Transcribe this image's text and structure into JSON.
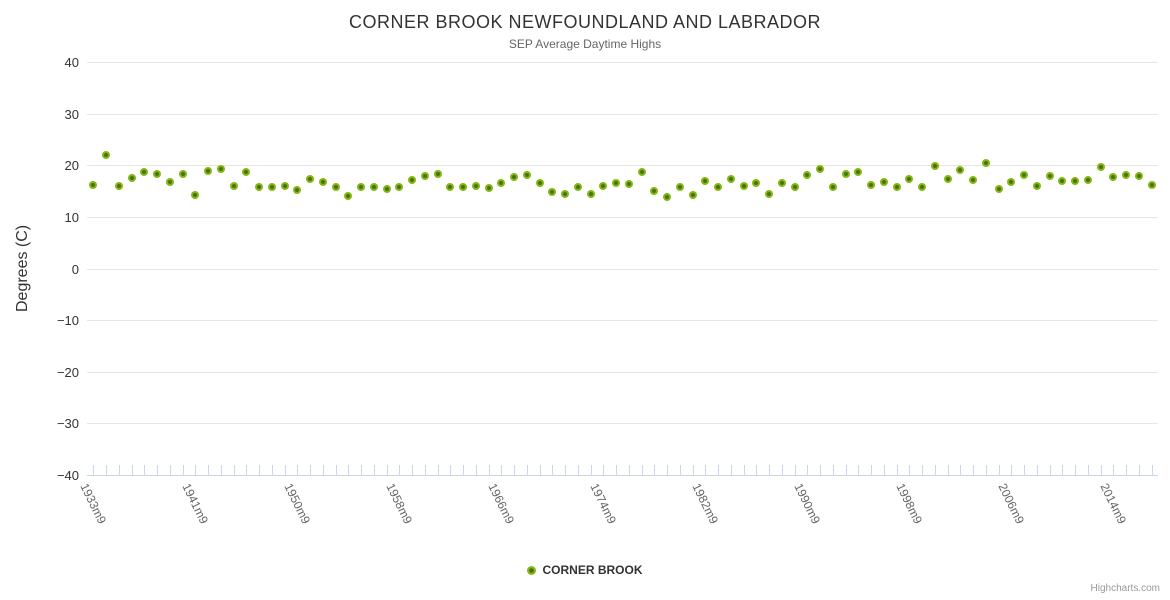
{
  "chart_data": {
    "type": "scatter",
    "title": "CORNER BROOK NEWFOUNDLAND AND LABRADOR",
    "subtitle": "SEP Average Daytime Highs",
    "ylabel": "Degrees (C)",
    "ylim": [
      -40,
      40
    ],
    "y_ticks": [
      40,
      30,
      20,
      10,
      0,
      -10,
      -20,
      -30,
      -40
    ],
    "y_tick_labels": [
      "40",
      "30",
      "20",
      "10",
      "0",
      "−10",
      "−20",
      "−30",
      "−40"
    ],
    "grid": "horizontal",
    "legend_position": "bottom-center",
    "point_count": 84,
    "x_labeled_ticks": [
      {
        "index": 0,
        "label": "1933m9"
      },
      {
        "index": 8,
        "label": "1941m9"
      },
      {
        "index": 16,
        "label": "1950m9"
      },
      {
        "index": 24,
        "label": "1958m9"
      },
      {
        "index": 32,
        "label": "1966m9"
      },
      {
        "index": 40,
        "label": "1974m9"
      },
      {
        "index": 48,
        "label": "1982m9"
      },
      {
        "index": 56,
        "label": "1990m9"
      },
      {
        "index": 64,
        "label": "1998m9"
      },
      {
        "index": 72,
        "label": "2006m9"
      },
      {
        "index": 80,
        "label": "2014m9"
      }
    ],
    "series": [
      {
        "name": "CORNER BROOK",
        "color": "#86b812",
        "marker_core_color": "#44700a",
        "values": [
          16.2,
          21.9,
          15.9,
          17.5,
          18.6,
          18.3,
          16.7,
          18.4,
          14.2,
          18.9,
          19.3,
          16.0,
          18.6,
          15.8,
          15.7,
          16.0,
          15.2,
          17.3,
          16.7,
          15.7,
          14.1,
          15.7,
          15.8,
          15.4,
          15.7,
          17.1,
          18.0,
          18.4,
          15.7,
          15.7,
          16.0,
          15.5,
          16.5,
          17.8,
          18.2,
          16.6,
          14.8,
          14.4,
          15.7,
          14.4,
          16.0,
          16.5,
          16.3,
          18.6,
          15.0,
          13.9,
          15.8,
          14.2,
          16.9,
          15.8,
          17.3,
          16.0,
          16.5,
          14.4,
          16.5,
          15.8,
          18.2,
          19.3,
          15.7,
          18.4,
          18.6,
          16.2,
          16.7,
          15.7,
          17.3,
          15.7,
          19.9,
          17.3,
          19.1,
          17.1,
          20.4,
          15.4,
          16.8,
          18.2,
          16.0,
          18.0,
          17.0,
          17.0,
          17.1,
          19.7,
          17.8,
          18.2,
          18.0,
          16.2
        ]
      }
    ]
  },
  "credits": "Highcharts.com",
  "colors": {
    "grid": "#e6e6e6",
    "axis": "#ccd6eb",
    "title": "#333333",
    "subtitle": "#666666",
    "series_green": "#86b812"
  }
}
